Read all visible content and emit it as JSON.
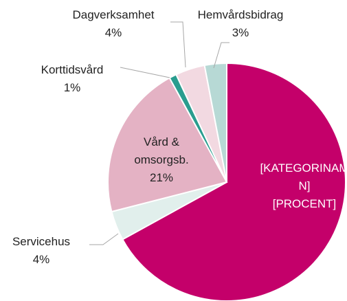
{
  "chart_data": {
    "type": "pie",
    "categories": [
      "[KATEGORINAMN]",
      "Servicehus",
      "Vård & omsorgsb.",
      "Korttidsvård",
      "Dagverksamhet",
      "Hemvårdsbidrag"
    ],
    "values": [
      67,
      4,
      21,
      1,
      4,
      3
    ],
    "value_labels": [
      "[PROCENT]",
      "4%",
      "21%",
      "1%",
      "4%",
      "3%"
    ],
    "colors": [
      "#c4006a",
      "#e1efec",
      "#e4b2c4",
      "#2a9d8f",
      "#f2d9e1",
      "#b7d9d5"
    ]
  }
}
